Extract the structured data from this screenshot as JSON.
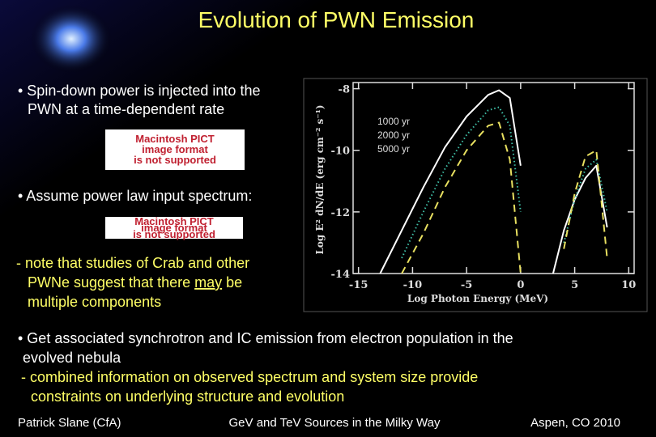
{
  "title": "Evolution of PWN Emission",
  "spin_down": [
    "• Spin-down power is injected into the",
    "PWN at a time-dependent rate"
  ],
  "power_law": [
    "• Assume power law input spectrum:"
  ],
  "note": [
    "- note that studies of Crab and other",
    [
      "PWNe suggest that there ",
      "may",
      " be"
    ],
    "multiple components"
  ],
  "pict_images": [
    [
      "Macintosh PICT",
      "image format",
      "is not supported"
    ],
    [
      "Macintosh PICT",
      "image format",
      "is not supported"
    ]
  ],
  "bottom": [
    "• Get associated synchrotron and IC emission from electron population in the",
    "evolved nebula",
    "- combined information on observed spectrum and system size provide",
    "constraints on underlying structure and evolution"
  ],
  "footer": [
    "Patrick Slane (CfA)",
    "GeV and TeV Sources in the Milky Way",
    "Aspen, CO 2010"
  ],
  "chart_data": {
    "type": "line",
    "x_label": "Log Photon Energy (MeV)",
    "y_label": "Log E² dN/dE (erg cm⁻² s⁻¹)",
    "x": [
      -13,
      -11,
      -9,
      -7,
      -5,
      -3,
      -2,
      -1,
      0,
      1,
      2,
      3,
      4,
      5,
      6,
      7,
      8,
      9
    ],
    "series": [
      {
        "name": "1000 yr",
        "color": "#ffffff",
        "line_style": "solid",
        "values": [
          -14,
          -12.6,
          -11.2,
          -9.9,
          -8.9,
          -8.2,
          -8.05,
          -8.3,
          -10.5,
          null,
          null,
          -14,
          -12.6,
          -11.6,
          -10.9,
          -10.5,
          -12.5,
          null
        ]
      },
      {
        "name": "2000 yr",
        "color": "#3fc0a8",
        "line_style": "dotted",
        "values": [
          null,
          -13.5,
          -12,
          -10.6,
          -9.5,
          -8.7,
          -8.6,
          -9.2,
          -12,
          null,
          null,
          null,
          -13,
          -11.6,
          -10.6,
          -10.3,
          -12,
          null
        ]
      },
      {
        "name": "5000 yr",
        "color": "#e8e060",
        "line_style": "dashed",
        "values": [
          null,
          -14,
          -12.7,
          -11.2,
          -10,
          -9.2,
          -9.1,
          -10.3,
          -14,
          null,
          null,
          null,
          -13.2,
          -11.4,
          -10.2,
          -10,
          -13.5,
          null
        ]
      }
    ],
    "xlim": [
      -15.5,
      10.5
    ],
    "ylim": [
      -14,
      -7.8
    ],
    "xticks": [
      -15,
      -10,
      -5,
      0,
      5,
      10
    ],
    "yticks": [
      -8,
      -10,
      -12,
      -14
    ]
  }
}
